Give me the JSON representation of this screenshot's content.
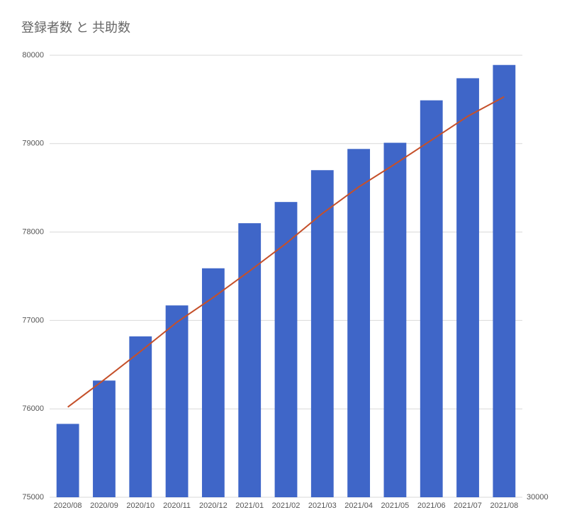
{
  "chart_data": {
    "type": "bar",
    "title": "登録者数 と 共助数",
    "categories": [
      "2020/08",
      "2020/09",
      "2020/10",
      "2020/11",
      "2020/12",
      "2021/01",
      "2021/02",
      "2021/03",
      "2021/04",
      "2021/05",
      "2021/06",
      "2021/07",
      "2021/08"
    ],
    "series": [
      {
        "type": "bar",
        "color": "#3f66c8",
        "values": [
          75830,
          76320,
          76820,
          77170,
          77590,
          78100,
          78340,
          78700,
          78940,
          79010,
          79490,
          79740,
          79890
        ]
      },
      {
        "type": "line",
        "color": "#c5502a",
        "values": [
          76020,
          76330,
          76650,
          76980,
          77260,
          77560,
          77870,
          78210,
          78510,
          78770,
          79040,
          79310,
          79530
        ]
      }
    ],
    "ylim": [
      75000,
      80000
    ],
    "yticks": [
      75000,
      76000,
      77000,
      78000,
      79000,
      80000
    ],
    "y2lim": [
      30000,
      35000
    ],
    "y2ticks": [
      30000
    ],
    "grid": true
  }
}
